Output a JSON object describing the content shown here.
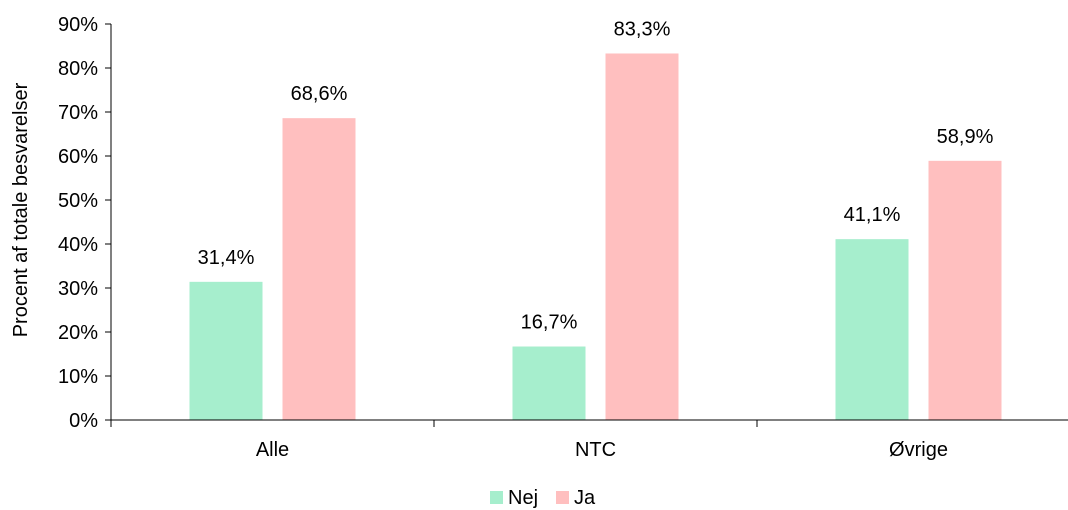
{
  "chart_data": {
    "type": "bar",
    "categories": [
      "Alle",
      "NTC",
      "Øvrige"
    ],
    "series": [
      {
        "name": "Nej",
        "values": [
          31.4,
          16.7,
          41.1
        ],
        "labels": [
          "31,4%",
          "16,7%",
          "41,1%"
        ],
        "color": "#a6eecd"
      },
      {
        "name": "Ja",
        "values": [
          68.6,
          83.3,
          58.9
        ],
        "labels": [
          "68,6%",
          "83,3%",
          "58,9%"
        ],
        "color": "#ffbfbf"
      }
    ],
    "ylabel": "Procent af totale besvarelser",
    "ylim": [
      0,
      90
    ],
    "yticks": [
      "0%",
      "10%",
      "20%",
      "30%",
      "40%",
      "50%",
      "60%",
      "70%",
      "80%",
      "90%"
    ],
    "grid": false,
    "legend_position": "bottom-center"
  }
}
